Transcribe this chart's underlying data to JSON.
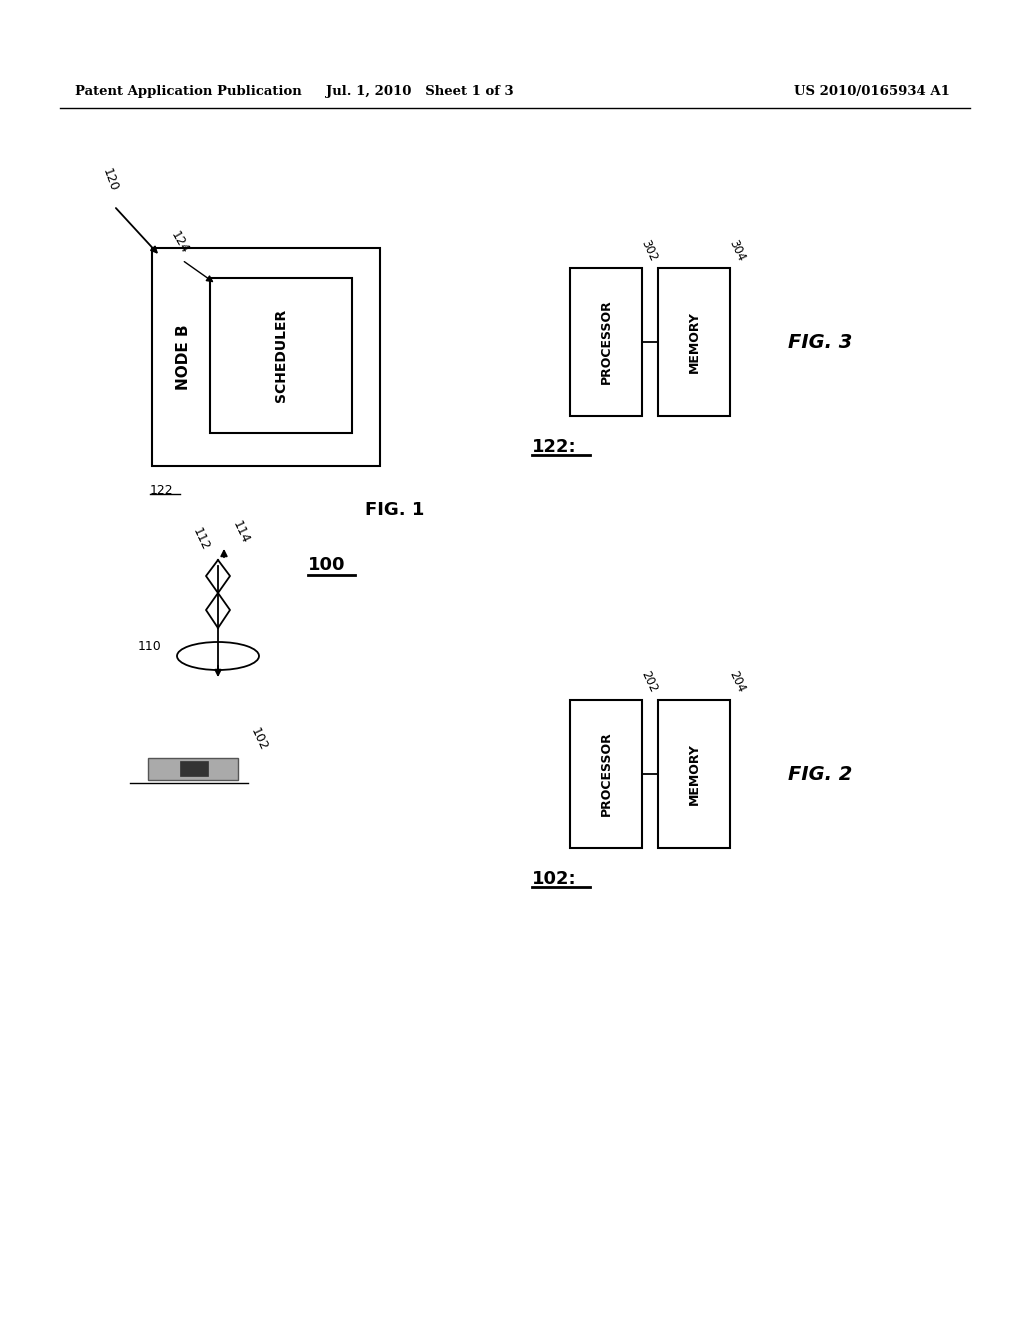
{
  "bg_color": "#ffffff",
  "header_left": "Patent Application Publication",
  "header_mid": "Jul. 1, 2010   Sheet 1 of 3",
  "header_right": "US 2010/0165934 A1"
}
